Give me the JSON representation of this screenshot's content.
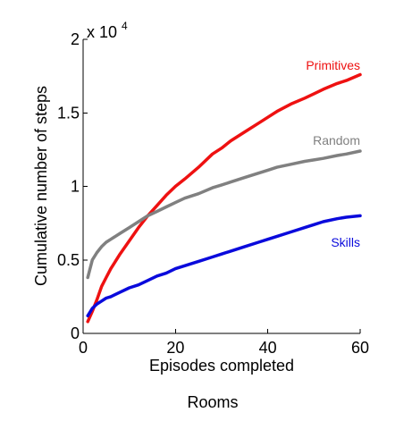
{
  "chart_data": {
    "type": "line",
    "title": "Rooms",
    "xlabel": "Episodes completed",
    "ylabel": "Cumulative number of steps",
    "y_multiplier_base": "x 10",
    "y_multiplier_exp": "4",
    "xlim": [
      0,
      60
    ],
    "ylim": [
      0,
      2
    ],
    "x_ticks": [
      0,
      20,
      40,
      60
    ],
    "x_tick_labels": [
      "0",
      "20",
      "40",
      "60"
    ],
    "y_ticks": [
      0,
      0.5,
      1,
      1.5,
      2
    ],
    "y_tick_labels": [
      "0",
      "0.5",
      "1",
      "1.5",
      "2"
    ],
    "grid": false,
    "series": [
      {
        "name": "Primitives",
        "color": "#ee1111",
        "x": [
          1,
          2,
          3,
          4,
          5,
          6,
          8,
          10,
          12,
          14,
          16,
          18,
          20,
          22,
          25,
          28,
          30,
          32,
          35,
          38,
          40,
          42,
          45,
          48,
          50,
          52,
          55,
          57,
          60
        ],
        "y": [
          0.08,
          0.15,
          0.23,
          0.32,
          0.38,
          0.44,
          0.54,
          0.63,
          0.72,
          0.8,
          0.87,
          0.94,
          1.0,
          1.05,
          1.13,
          1.22,
          1.26,
          1.31,
          1.37,
          1.43,
          1.47,
          1.51,
          1.56,
          1.6,
          1.63,
          1.66,
          1.7,
          1.72,
          1.76
        ]
      },
      {
        "name": "Random",
        "color": "#808080",
        "x": [
          1,
          2,
          3,
          4,
          5,
          6,
          8,
          10,
          12,
          14,
          16,
          18,
          20,
          22,
          25,
          28,
          30,
          32,
          35,
          38,
          40,
          42,
          45,
          48,
          50,
          52,
          55,
          57,
          60
        ],
        "y": [
          0.38,
          0.5,
          0.55,
          0.59,
          0.62,
          0.64,
          0.68,
          0.72,
          0.76,
          0.8,
          0.83,
          0.86,
          0.89,
          0.92,
          0.95,
          0.99,
          1.01,
          1.03,
          1.06,
          1.09,
          1.11,
          1.13,
          1.15,
          1.17,
          1.18,
          1.19,
          1.21,
          1.22,
          1.24
        ]
      },
      {
        "name": "Skills",
        "color": "#0a0adc",
        "x": [
          1,
          2,
          3,
          4,
          5,
          6,
          8,
          10,
          12,
          14,
          16,
          18,
          20,
          22,
          25,
          28,
          30,
          32,
          35,
          38,
          40,
          42,
          45,
          48,
          50,
          52,
          55,
          57,
          60
        ],
        "y": [
          0.12,
          0.17,
          0.2,
          0.22,
          0.24,
          0.25,
          0.28,
          0.31,
          0.33,
          0.36,
          0.39,
          0.41,
          0.44,
          0.46,
          0.49,
          0.52,
          0.54,
          0.56,
          0.59,
          0.62,
          0.64,
          0.66,
          0.69,
          0.72,
          0.74,
          0.76,
          0.78,
          0.79,
          0.8
        ]
      }
    ]
  }
}
